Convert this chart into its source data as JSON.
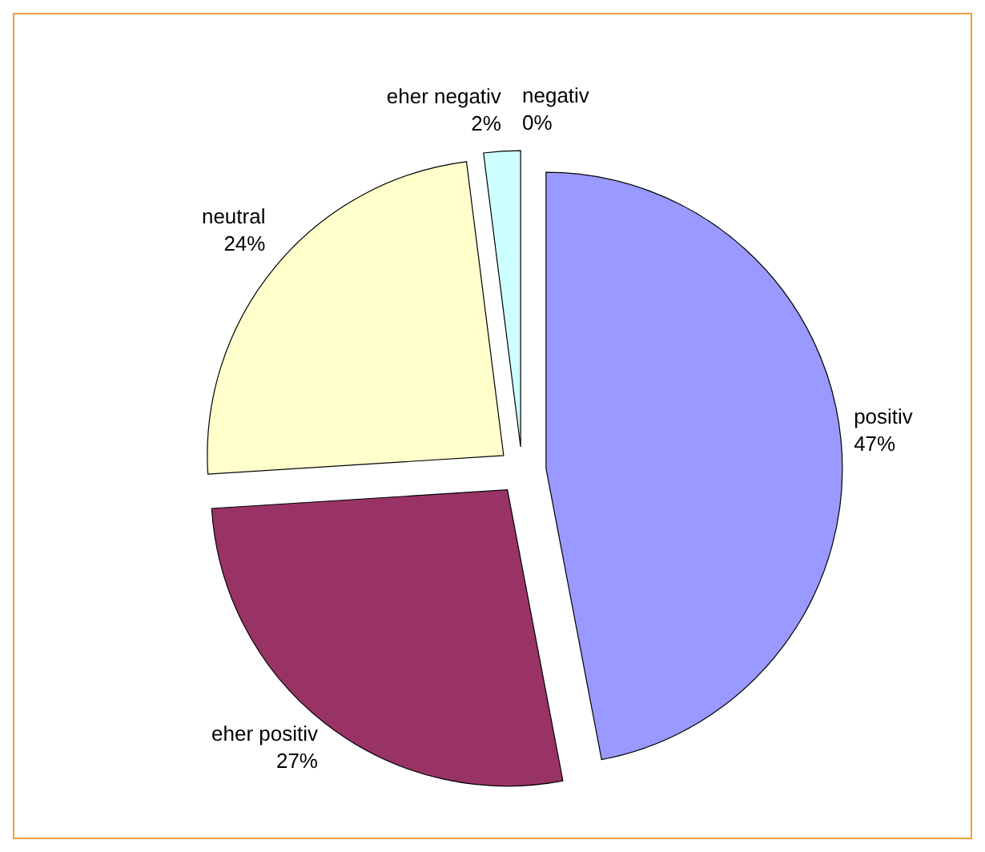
{
  "chart_data": {
    "type": "pie",
    "categories": [
      "positiv",
      "eher positiv",
      "neutral",
      "eher negativ",
      "negativ"
    ],
    "values": [
      47,
      27,
      24,
      2,
      0
    ],
    "value_labels": [
      "47%",
      "27%",
      "24%",
      "2%",
      "0%"
    ],
    "colors": [
      "#9999ff",
      "#993366",
      "#ffffcc",
      "#ccffff",
      "#ffffff"
    ],
    "legend": false
  }
}
